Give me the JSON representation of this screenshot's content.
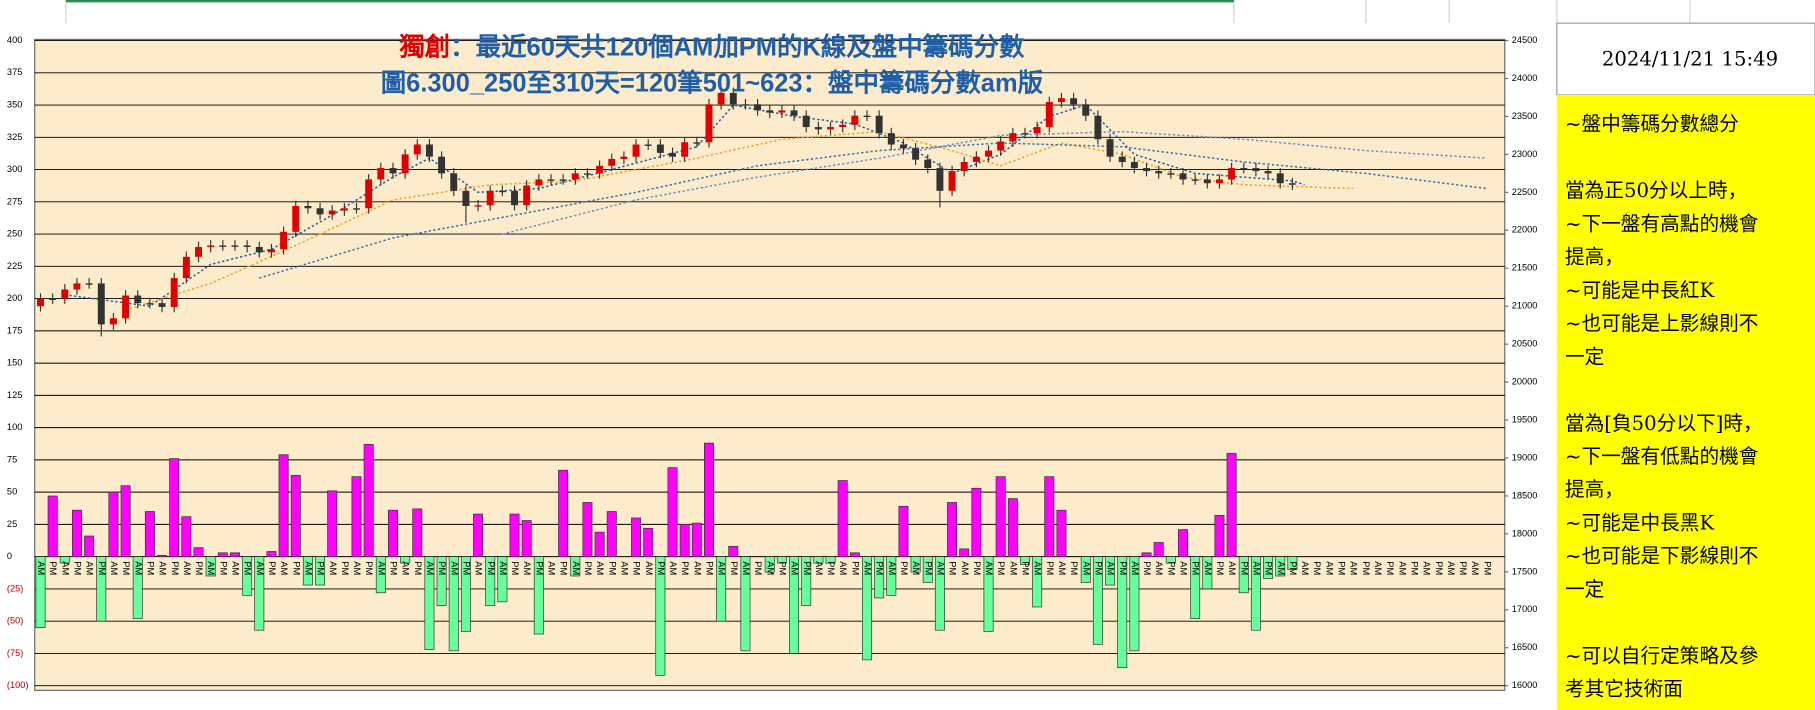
{
  "chart_data": {
    "type": "candlestick-bar",
    "title": {
      "highlight": "獨創",
      "text": "：最近60天共120個AM加PM的K線及盤中籌碼分數"
    },
    "subtitle": "圖6.300_250至310天=120筆501~623：盤中籌碼分數am版",
    "categories": [
      "AM",
      "PM",
      "AM",
      "PM",
      "AM",
      "PM",
      "AM",
      "PM",
      "AM",
      "PM",
      "AM",
      "PM",
      "AM",
      "PM",
      "AM",
      "PM",
      "AM",
      "PM",
      "AM",
      "PM",
      "AM",
      "PM",
      "AM",
      "PM",
      "AM",
      "PM",
      "AM",
      "PM",
      "AM",
      "PM",
      "AM",
      "PM",
      "AM",
      "PM",
      "AM",
      "PM",
      "AM",
      "PM",
      "AM",
      "PM",
      "AM",
      "PM",
      "AM",
      "PM",
      "AM",
      "PM",
      "AM",
      "PM",
      "AM",
      "PM",
      "AM",
      "PM",
      "AM",
      "PM",
      "AM",
      "PM",
      "AM",
      "PM",
      "AM",
      "PM",
      "AM",
      "PM",
      "AM",
      "PM",
      "AM",
      "PM",
      "AM",
      "PM",
      "AM",
      "PM",
      "AM",
      "PM",
      "AM",
      "PM",
      "AM",
      "PM",
      "AM",
      "PM",
      "AM",
      "PM",
      "AM",
      "PM",
      "AM",
      "PM",
      "AM",
      "PM",
      "AM",
      "PM",
      "AM",
      "PM",
      "AM",
      "PM",
      "AM",
      "PM",
      "AM",
      "PM",
      "AM",
      "PM",
      "AM",
      "PM",
      "AM",
      "PM",
      "AM",
      "PM",
      "AM",
      "PM",
      "AM",
      "PM",
      "AM",
      "PM",
      "AM",
      "PM",
      "AM",
      "PM",
      "AM",
      "PM",
      "AM",
      "PM",
      "AM",
      "PM"
    ],
    "ylim": [
      -100,
      400
    ],
    "yticks": [
      {
        "value": -100,
        "label": "(100)"
      },
      {
        "value": -75,
        "label": "(75)"
      },
      {
        "value": -50,
        "label": "(50)"
      },
      {
        "value": -25,
        "label": "(25)"
      },
      0,
      25,
      50,
      75,
      100,
      125,
      150,
      175,
      200,
      225,
      250,
      275,
      300,
      325,
      350,
      375,
      400
    ],
    "y2lim": [
      16000,
      24500
    ],
    "y2ticks": [
      16000,
      16500,
      17000,
      17500,
      18000,
      18500,
      19000,
      19500,
      20000,
      20500,
      21000,
      21500,
      22000,
      22500,
      23000,
      23500,
      24000,
      24500
    ],
    "grid": true,
    "bars": {
      "positive_color": "#ff00ff",
      "negative_color": "#66ff99",
      "values": [
        -55,
        47,
        -5,
        36,
        16,
        -50,
        50,
        55,
        -48,
        35,
        1,
        76,
        31,
        7,
        -15,
        3,
        3,
        -30,
        -57,
        4,
        79,
        63,
        -22,
        -22,
        51,
        0,
        62,
        87,
        -28,
        36,
        -5,
        37,
        -72,
        -38,
        -73,
        -58,
        33,
        -38,
        -35,
        33,
        28,
        -60,
        0,
        67,
        -15,
        42,
        19,
        35,
        0,
        30,
        22,
        -92,
        69,
        25,
        26,
        88,
        -50,
        8,
        -73,
        0,
        -12,
        -5,
        -75,
        -38,
        -5,
        -5,
        59,
        3,
        -80,
        -32,
        -30,
        39,
        -12,
        -20,
        -57,
        42,
        6,
        53,
        -58,
        62,
        45,
        -6,
        -39,
        62,
        36,
        0,
        -20,
        -68,
        -22,
        -86,
        -73,
        3,
        11,
        -5,
        21,
        -48,
        -25,
        32,
        80,
        -28,
        -57,
        -17,
        -15,
        -10,
        null,
        null,
        null,
        null,
        null,
        null,
        null,
        null,
        null,
        null,
        null,
        null,
        null,
        null,
        null,
        null
      ]
    },
    "candles": {
      "axis": "y2",
      "up_color": "#e00000",
      "down_color": "#333333",
      "open": [
        21000,
        21100,
        21100,
        21220,
        21300,
        21300,
        20760,
        20840,
        21140,
        21040,
        21040,
        20990,
        21370,
        21650,
        21780,
        21800,
        21800,
        21800,
        21780,
        21710,
        21750,
        21980,
        22320,
        22290,
        22210,
        22260,
        22290,
        22290,
        22670,
        22820,
        22750,
        23000,
        23130,
        22970,
        22750,
        22520,
        22320,
        22330,
        22520,
        22520,
        22330,
        22590,
        22670,
        22670,
        22670,
        22750,
        22750,
        22850,
        22940,
        22970,
        23130,
        23130,
        23020,
        22970,
        23160,
        23160,
        23660,
        23810,
        23660,
        23660,
        23580,
        23550,
        23580,
        23510,
        23360,
        23330,
        23360,
        23390,
        23510,
        23510,
        23280,
        23130,
        23080,
        22930,
        22820,
        22520,
        22780,
        22900,
        22970,
        23050,
        23170,
        23280,
        23280,
        23360,
        23690,
        23740,
        23660,
        23510,
        23200,
        22970,
        22900,
        22820,
        22780,
        22750,
        22750,
        22670,
        22670,
        22620,
        22670,
        22820,
        22820,
        22780,
        22750,
        22620,
        null,
        null,
        null,
        null,
        null,
        null,
        null,
        null,
        null,
        null,
        null,
        null,
        null,
        null,
        null,
        null
      ],
      "high": [
        21170,
        21170,
        21290,
        21370,
        21370,
        21370,
        20910,
        21210,
        21210,
        21110,
        21110,
        21440,
        21720,
        21850,
        21870,
        21870,
        21870,
        21870,
        21850,
        21820,
        22050,
        22390,
        22390,
        22360,
        22330,
        22360,
        22360,
        22740,
        22890,
        22890,
        23070,
        23200,
        23200,
        23040,
        22820,
        22590,
        22400,
        22590,
        22590,
        22590,
        22660,
        22740,
        22740,
        22740,
        22820,
        22820,
        22920,
        23010,
        23040,
        23200,
        23200,
        23200,
        23090,
        23230,
        23230,
        23730,
        23880,
        23880,
        23730,
        23730,
        23650,
        23650,
        23650,
        23580,
        23430,
        23430,
        23460,
        23580,
        23580,
        23580,
        23350,
        23200,
        23150,
        23000,
        22890,
        22850,
        22970,
        23040,
        23120,
        23240,
        23350,
        23350,
        23430,
        23760,
        23810,
        23810,
        23730,
        23580,
        23270,
        23040,
        22970,
        22890,
        22850,
        22820,
        22820,
        22740,
        22740,
        22740,
        22890,
        22890,
        22890,
        22850,
        22820,
        22690,
        null,
        null,
        null,
        null,
        null,
        null,
        null,
        null,
        null,
        null,
        null,
        null,
        null,
        null,
        null,
        null
      ],
      "low": [
        20930,
        21030,
        21030,
        21150,
        21230,
        20600,
        20690,
        20770,
        20970,
        20970,
        20920,
        20920,
        21300,
        21580,
        21710,
        21730,
        21730,
        21710,
        21640,
        21640,
        21680,
        21910,
        22220,
        22140,
        22140,
        22190,
        22220,
        22220,
        22600,
        22680,
        22680,
        22930,
        22900,
        22680,
        22450,
        22100,
        22250,
        22260,
        22450,
        22260,
        22260,
        22520,
        22600,
        22600,
        22600,
        22680,
        22680,
        22780,
        22870,
        22900,
        23060,
        22950,
        22900,
        22900,
        23090,
        23090,
        23590,
        23590,
        23590,
        23510,
        23480,
        23480,
        23440,
        23290,
        23260,
        23260,
        23290,
        23320,
        23440,
        23210,
        23060,
        23010,
        22860,
        22750,
        22300,
        22450,
        22710,
        22830,
        22900,
        22980,
        23100,
        23210,
        23210,
        23290,
        23620,
        23590,
        23440,
        23130,
        22900,
        22830,
        22750,
        22710,
        22680,
        22680,
        22600,
        22600,
        22550,
        22550,
        22600,
        22750,
        22710,
        22680,
        22550,
        22530,
        null,
        null,
        null,
        null,
        null,
        null,
        null,
        null,
        null,
        null,
        null,
        null,
        null,
        null,
        null,
        null
      ],
      "close": [
        21100,
        21100,
        21220,
        21300,
        21300,
        20760,
        20840,
        21140,
        21040,
        21040,
        20990,
        21370,
        21650,
        21780,
        21800,
        21800,
        21800,
        21780,
        21710,
        21750,
        21980,
        22320,
        22290,
        22210,
        22260,
        22290,
        22290,
        22670,
        22820,
        22750,
        23000,
        23130,
        22970,
        22750,
        22520,
        22320,
        22330,
        22520,
        22520,
        22330,
        22590,
        22670,
        22670,
        22670,
        22750,
        22750,
        22850,
        22940,
        22970,
        23130,
        23130,
        23020,
        22970,
        23160,
        23160,
        23660,
        23810,
        23660,
        23660,
        23580,
        23550,
        23580,
        23510,
        23360,
        23330,
        23360,
        23390,
        23510,
        23510,
        23280,
        23130,
        23080,
        22930,
        22820,
        22520,
        22780,
        22900,
        22970,
        23050,
        23170,
        23280,
        23280,
        23360,
        23690,
        23740,
        23660,
        23510,
        23200,
        22970,
        22900,
        22820,
        22780,
        22750,
        22750,
        22670,
        22670,
        22620,
        22670,
        22820,
        22820,
        22780,
        22750,
        22620,
        22600,
        null,
        null,
        null,
        null,
        null,
        null,
        null,
        null,
        null,
        null,
        null,
        null,
        null,
        null,
        null,
        null
      ]
    },
    "lines": [
      {
        "axis": "y2",
        "color": "#1f5fa8",
        "x": [
          2,
          9,
          14,
          19,
          24,
          29,
          32,
          36,
          41,
          47,
          54,
          57,
          62,
          67,
          71,
          75,
          79,
          83,
          86,
          90,
          95,
          99,
          103,
          104
        ],
        "values": [
          21150,
          21000,
          21550,
          21750,
          22200,
          22700,
          22950,
          22500,
          22550,
          22800,
          23100,
          23650,
          23500,
          23400,
          23150,
          22750,
          23000,
          23500,
          23650,
          23000,
          22750,
          22700,
          22650,
          22600
        ]
      },
      {
        "axis": "y2",
        "color": "#f0a020",
        "x": [
          7,
          14,
          21,
          29,
          37,
          44,
          54,
          61,
          69,
          75,
          79,
          84,
          89,
          94,
          99,
          108
        ],
        "values": [
          20950,
          21300,
          21800,
          22400,
          22600,
          22650,
          22950,
          23200,
          23300,
          23050,
          22850,
          23150,
          23000,
          22700,
          22600,
          22550
        ]
      },
      {
        "axis": "y2",
        "color": "#3a6fb0",
        "x": [
          18,
          29,
          39,
          49,
          59,
          69,
          79,
          89,
          99,
          109,
          119
        ],
        "values": [
          21370,
          21900,
          22200,
          22500,
          22850,
          23050,
          23150,
          23100,
          22900,
          22750,
          22550
        ]
      },
      {
        "axis": "y2",
        "color": "#6a8fc8",
        "x": [
          38,
          49,
          59,
          69,
          79,
          89,
          99,
          109,
          119
        ],
        "values": [
          21950,
          22400,
          22700,
          22950,
          23250,
          23300,
          23200,
          23050,
          22950
        ]
      }
    ]
  },
  "side_panel": {
    "timestamp": "2024/11/21 15:49",
    "notes": [
      [
        "~盤中籌碼分數總分"
      ],
      [
        "當為正50分以上時，",
        "~下一盤有高點的機會",
        "提高，",
        "~可能是中長紅K",
        "~也可能是上影線則不",
        "一定"
      ],
      [
        "當為[負50分以下]時，",
        "~下一盤有低點的機會",
        "提高，",
        "~可能是中長黑K",
        "~也可能是下影線則不",
        "一定"
      ],
      [
        "~可以自行定策略及參",
        "考其它技術面"
      ]
    ]
  }
}
